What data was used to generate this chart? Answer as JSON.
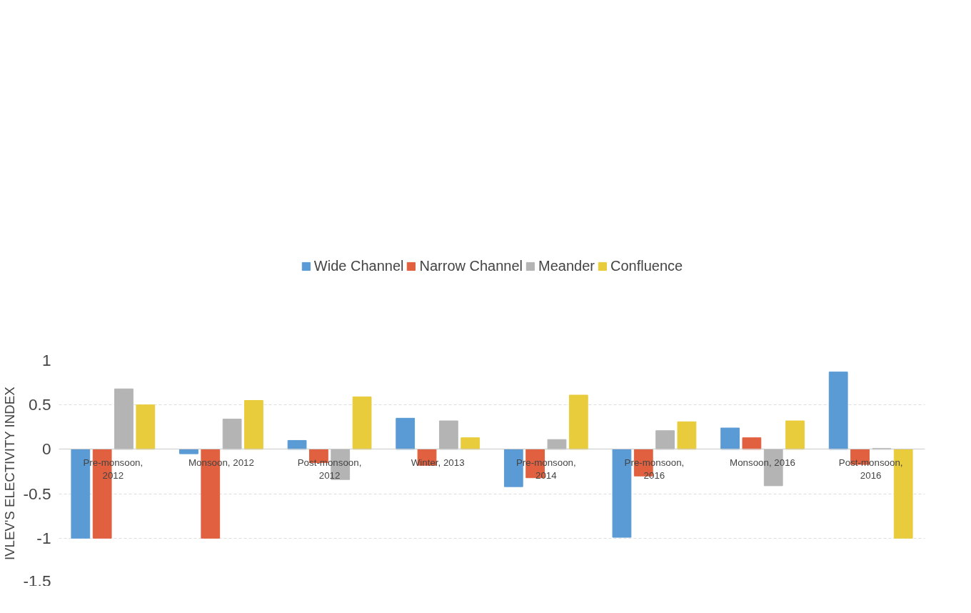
{
  "chart_data": {
    "type": "bar",
    "ylabel": "IVLEV'S  ELECTIVITY INDEX",
    "categories": [
      "Pre-monsoon, 2012",
      "Monsoon, 2012",
      "Post-monsoon, 2012",
      "Winter, 2013",
      "Pre-monsoon, 2014",
      "Pre-monsoon, 2016",
      "Monsoon, 2016",
      "Post-monsoon, 2016"
    ],
    "series": [
      {
        "name": "Wide Channel",
        "color": "#5b9bd5",
        "values": [
          -1,
          -0.05,
          0.1,
          0.35,
          -0.42,
          -0.99,
          0.24,
          0.87
        ]
      },
      {
        "name": "Narrow Channel",
        "color": "#e0603f",
        "values": [
          -1,
          -1,
          -0.15,
          -0.18,
          -0.32,
          -0.3,
          0.13,
          -0.17
        ]
      },
      {
        "name": "Meander",
        "color": "#b4b4b4",
        "values": [
          0.68,
          0.34,
          -0.34,
          0.32,
          0.11,
          0.21,
          -0.41,
          0.01
        ]
      },
      {
        "name": "Confluence",
        "color": "#e8cc3c",
        "values": [
          0.5,
          0.55,
          0.59,
          0.13,
          0.61,
          0.31,
          0.32,
          -1
        ]
      }
    ],
    "ylim": [
      -1.5,
      1
    ],
    "yticks": [
      {
        "value": -1.5,
        "label": "-1.5"
      },
      {
        "value": -1,
        "label": "-1"
      },
      {
        "value": -0.5,
        "label": "-0.5"
      },
      {
        "value": 0,
        "label": "0"
      },
      {
        "value": 0.5,
        "label": "0.5"
      },
      {
        "value": 1,
        "label": "1"
      }
    ],
    "grid": "y",
    "legend": "top"
  }
}
